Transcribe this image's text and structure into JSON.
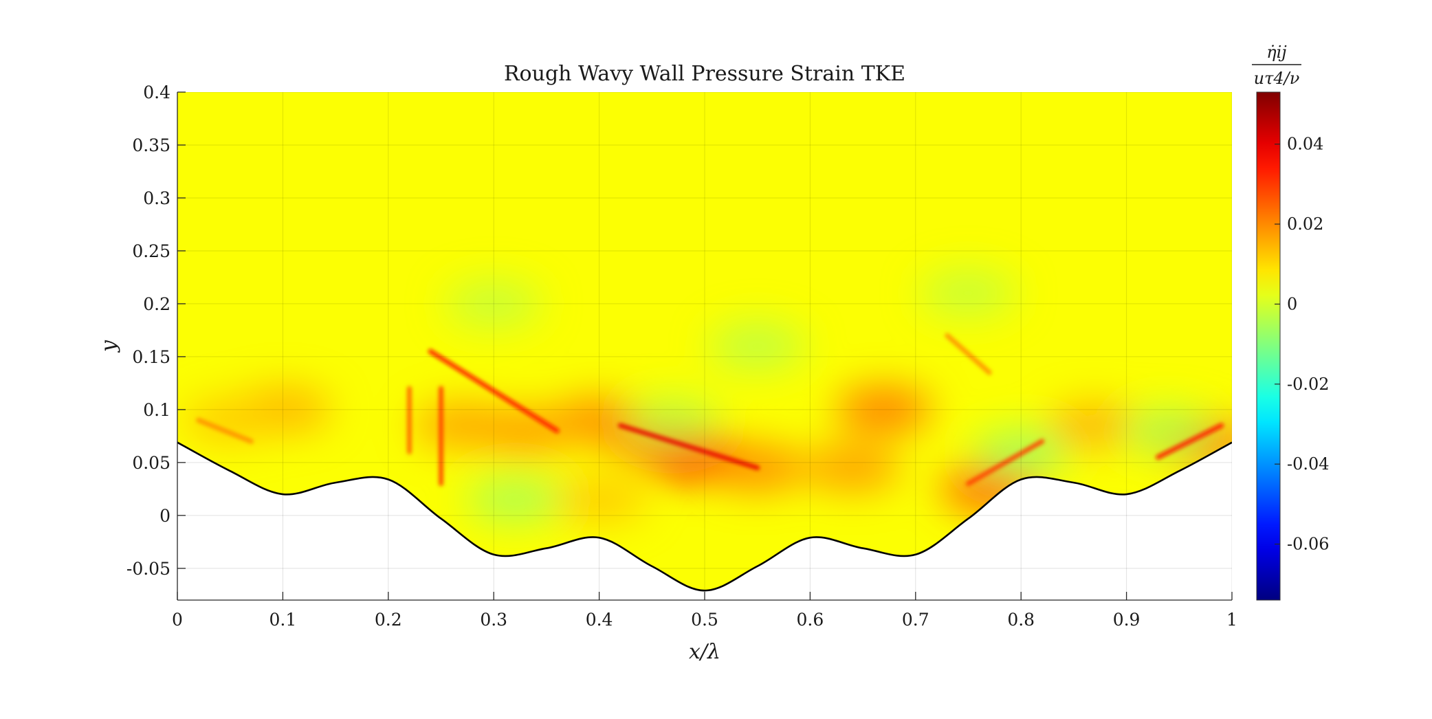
{
  "chart_data": {
    "type": "heatmap",
    "title": "Rough Wavy Wall Pressure Strain TKE",
    "xlabel": "x/λ",
    "ylabel": "y",
    "xlim": [
      0,
      1
    ],
    "ylim": [
      -0.08,
      0.4
    ],
    "x_ticks": [
      0,
      0.1,
      0.2,
      0.3,
      0.4,
      0.5,
      0.6,
      0.7,
      0.8,
      0.9,
      1
    ],
    "x_tick_labels": [
      "0",
      "0.1",
      "0.2",
      "0.3",
      "0.4",
      "0.5",
      "0.6",
      "0.7",
      "0.8",
      "0.9",
      "1"
    ],
    "y_ticks": [
      -0.05,
      0,
      0.05,
      0.1,
      0.15,
      0.2,
      0.25,
      0.3,
      0.35,
      0.4
    ],
    "y_tick_labels": [
      "-0.05",
      "0",
      "0.05",
      "0.1",
      "0.15",
      "0.2",
      "0.25",
      "0.3",
      "0.35",
      "0.4"
    ],
    "grid": true,
    "colormap": "jet",
    "colorbar": {
      "label_numerator": "η̇ij",
      "label_denominator": "uτ4/ν",
      "clim": [
        -0.074,
        0.053
      ],
      "ticks": [
        0.04,
        0.02,
        0,
        -0.02,
        -0.04,
        -0.06
      ],
      "tick_labels": [
        "0.04",
        "0.02",
        "0",
        "-0.02",
        "-0.04",
        "-0.06"
      ]
    },
    "wall_profile": {
      "x": [
        0,
        0.05,
        0.1,
        0.15,
        0.2,
        0.25,
        0.3,
        0.35,
        0.4,
        0.45,
        0.5,
        0.55,
        0.6,
        0.65,
        0.7,
        0.75,
        0.8,
        0.85,
        0.9,
        0.95,
        1.0
      ],
      "y": [
        0.069,
        0.042,
        0.02,
        0.031,
        0.034,
        -0.003,
        -0.037,
        -0.031,
        -0.021,
        -0.048,
        -0.071,
        -0.048,
        -0.021,
        -0.031,
        -0.037,
        -0.003,
        0.034,
        0.031,
        0.02,
        0.042,
        0.069
      ]
    },
    "regions": [
      {
        "x": 0.45,
        "y": 0.075,
        "value": 0.028
      },
      {
        "x": 0.49,
        "y": 0.055,
        "value": 0.035
      },
      {
        "x": 0.4,
        "y": 0.09,
        "value": 0.02
      },
      {
        "x": 0.33,
        "y": 0.08,
        "value": 0.018
      },
      {
        "x": 0.27,
        "y": 0.085,
        "value": 0.017
      },
      {
        "x": 0.55,
        "y": 0.045,
        "value": 0.02
      },
      {
        "x": 0.67,
        "y": 0.1,
        "value": 0.022
      },
      {
        "x": 0.64,
        "y": 0.045,
        "value": 0.018
      },
      {
        "x": 0.77,
        "y": 0.025,
        "value": 0.025
      },
      {
        "x": 0.87,
        "y": 0.085,
        "value": 0.015
      },
      {
        "x": 0.97,
        "y": 0.07,
        "value": 0.03
      },
      {
        "x": 0.1,
        "y": 0.1,
        "value": 0.015
      },
      {
        "x": 0.05,
        "y": 0.09,
        "value": 0.012
      },
      {
        "x": 0.4,
        "y": 0.015,
        "value": 0.012
      },
      {
        "x": 0.8,
        "y": 0.06,
        "value": -0.006
      },
      {
        "x": 0.32,
        "y": 0.015,
        "value": -0.005
      },
      {
        "x": 0.47,
        "y": 0.09,
        "value": -0.003
      },
      {
        "x": 0.55,
        "y": 0.16,
        "value": -0.003
      },
      {
        "x": 0.3,
        "y": 0.2,
        "value": -0.002
      },
      {
        "x": 0.75,
        "y": 0.21,
        "value": -0.002
      },
      {
        "x": 0.94,
        "y": 0.08,
        "value": -0.004
      }
    ],
    "streaks": [
      {
        "x1": 0.24,
        "y1": 0.155,
        "x2": 0.36,
        "y2": 0.08,
        "value": 0.035
      },
      {
        "x1": 0.42,
        "y1": 0.085,
        "x2": 0.55,
        "y2": 0.045,
        "value": 0.04
      },
      {
        "x1": 0.25,
        "y1": 0.12,
        "x2": 0.25,
        "y2": 0.03,
        "value": 0.03
      },
      {
        "x1": 0.22,
        "y1": 0.12,
        "x2": 0.22,
        "y2": 0.06,
        "value": 0.025
      },
      {
        "x1": 0.75,
        "y1": 0.03,
        "x2": 0.82,
        "y2": 0.07,
        "value": 0.03
      },
      {
        "x1": 0.93,
        "y1": 0.055,
        "x2": 0.99,
        "y2": 0.085,
        "value": 0.035
      },
      {
        "x1": 0.73,
        "y1": 0.17,
        "x2": 0.77,
        "y2": 0.135,
        "value": 0.02
      },
      {
        "x1": 0.02,
        "y1": 0.09,
        "x2": 0.07,
        "y2": 0.07,
        "value": 0.02
      }
    ]
  }
}
